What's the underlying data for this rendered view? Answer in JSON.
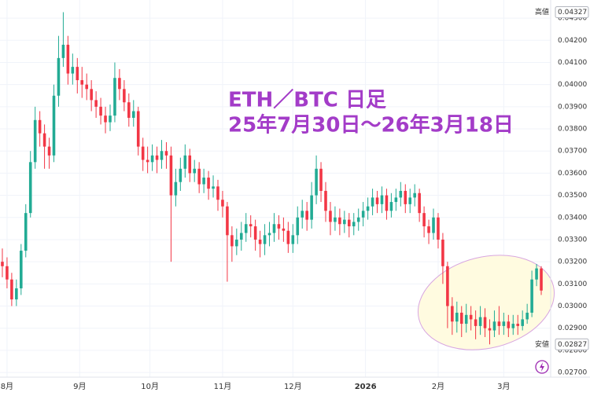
{
  "chart_data": {
    "type": "candlestick",
    "title": "ETH／BTC 日足",
    "subtitle": "25年7月30日～26年3月18日",
    "up_color": "#22ab94",
    "down_color": "#f23645",
    "xlim": [
      -0.5,
      115.5
    ],
    "xticks": [
      {
        "value": 1,
        "label": "8月"
      },
      {
        "value": 16.5,
        "label": "9月"
      },
      {
        "value": 31.5,
        "label": "10月"
      },
      {
        "value": 47,
        "label": "11月"
      },
      {
        "value": 62,
        "label": "12月"
      },
      {
        "value": 77.5,
        "label": "2026"
      },
      {
        "value": 93,
        "label": "2月"
      },
      {
        "value": 107,
        "label": "3月"
      }
    ],
    "ylim": [
      0.02679,
      0.04382
    ],
    "yticks": [
      {
        "value": 0.043,
        "label": "0.04300"
      },
      {
        "value": 0.042,
        "label": "0.04200"
      },
      {
        "value": 0.041,
        "label": "0.04100"
      },
      {
        "value": 0.04,
        "label": "0.04000"
      },
      {
        "value": 0.039,
        "label": "0.03900"
      },
      {
        "value": 0.038,
        "label": "0.03800"
      },
      {
        "value": 0.037,
        "label": "0.03700"
      },
      {
        "value": 0.036,
        "label": "0.03600"
      },
      {
        "value": 0.035,
        "label": "0.03500"
      },
      {
        "value": 0.034,
        "label": "0.03400"
      },
      {
        "value": 0.033,
        "label": "0.03300"
      },
      {
        "value": 0.032,
        "label": "0.03200"
      },
      {
        "value": 0.031,
        "label": "0.03100"
      },
      {
        "value": 0.03,
        "label": "0.03000"
      },
      {
        "value": 0.029,
        "label": "0.02900"
      },
      {
        "value": 0.028,
        "label": "0.02800"
      },
      {
        "value": 0.027,
        "label": "0.02700"
      }
    ],
    "grid": true,
    "annotations": [
      {
        "label": "高値",
        "value": 0.04327
      },
      {
        "label": "安値",
        "value": 0.02827
      }
    ],
    "open": [
      0.032,
      0.0318,
      0.0312,
      0.0303,
      0.0308,
      0.0325,
      0.0342,
      0.0365,
      0.0384,
      0.0378,
      0.0372,
      0.0368,
      0.0395,
      0.0412,
      0.0418,
      0.0405,
      0.0408,
      0.0402,
      0.04,
      0.0398,
      0.0393,
      0.039,
      0.0386,
      0.0383,
      0.0386,
      0.0403,
      0.0398,
      0.0392,
      0.0385,
      0.0388,
      0.0372,
      0.0366,
      0.0365,
      0.0368,
      0.0366,
      0.037,
      0.0368,
      0.035,
      0.0356,
      0.0362,
      0.0368,
      0.036,
      0.0362,
      0.0355,
      0.0358,
      0.0353,
      0.0354,
      0.0348,
      0.0345,
      0.0332,
      0.0327,
      0.033,
      0.0333,
      0.0337,
      0.0336,
      0.033,
      0.0328,
      0.0332,
      0.0333,
      0.0337,
      0.0335,
      0.0334,
      0.0328,
      0.0332,
      0.034,
      0.0343,
      0.0339,
      0.035,
      0.0362,
      0.0352,
      0.0343,
      0.0338,
      0.034,
      0.0337,
      0.0339,
      0.0336,
      0.0338,
      0.034,
      0.0343,
      0.0345,
      0.0349,
      0.0346,
      0.035,
      0.0343,
      0.0347,
      0.0349,
      0.0352,
      0.0346,
      0.0349,
      0.0351,
      0.0342,
      0.0336,
      0.0333,
      0.034,
      0.033,
      0.0318,
      0.03,
      0.0293,
      0.0297,
      0.0292,
      0.0296,
      0.0294,
      0.0291,
      0.0295,
      0.029,
      0.0289,
      0.0293,
      0.0291,
      0.0293,
      0.029,
      0.0292,
      0.0291,
      0.0294,
      0.0297,
      0.0312,
      0.0317
    ],
    "high": [
      0.0326,
      0.0322,
      0.0315,
      0.0312,
      0.0328,
      0.0346,
      0.037,
      0.039,
      0.0388,
      0.0382,
      0.0376,
      0.04,
      0.0422,
      0.04327,
      0.0422,
      0.0414,
      0.0412,
      0.0408,
      0.0405,
      0.0402,
      0.0397,
      0.0394,
      0.039,
      0.0391,
      0.041,
      0.0407,
      0.0402,
      0.0396,
      0.0393,
      0.039,
      0.0376,
      0.0372,
      0.0373,
      0.0372,
      0.0375,
      0.0374,
      0.0372,
      0.0362,
      0.0367,
      0.0373,
      0.0371,
      0.0366,
      0.0365,
      0.0362,
      0.0361,
      0.0359,
      0.0357,
      0.0352,
      0.0347,
      0.0336,
      0.0335,
      0.0338,
      0.0342,
      0.0341,
      0.0339,
      0.0334,
      0.0337,
      0.0338,
      0.0342,
      0.0341,
      0.034,
      0.0338,
      0.0337,
      0.0345,
      0.0348,
      0.0347,
      0.0356,
      0.0368,
      0.0365,
      0.0356,
      0.0347,
      0.0345,
      0.0344,
      0.0343,
      0.0342,
      0.0342,
      0.0344,
      0.0347,
      0.0349,
      0.0353,
      0.0352,
      0.0354,
      0.0353,
      0.0351,
      0.0353,
      0.0356,
      0.0355,
      0.0353,
      0.0355,
      0.0353,
      0.0345,
      0.0339,
      0.0344,
      0.0342,
      0.0333,
      0.032,
      0.0304,
      0.0302,
      0.03,
      0.0301,
      0.03,
      0.0298,
      0.03,
      0.0299,
      0.0294,
      0.0298,
      0.03,
      0.0297,
      0.0296,
      0.0296,
      0.0296,
      0.0298,
      0.0301,
      0.0316,
      0.0319,
      0.0318
    ],
    "low": [
      0.0313,
      0.0308,
      0.03,
      0.03,
      0.0305,
      0.0322,
      0.034,
      0.0362,
      0.0372,
      0.0362,
      0.0362,
      0.0365,
      0.039,
      0.0408,
      0.04,
      0.04,
      0.0396,
      0.0394,
      0.0393,
      0.0388,
      0.0385,
      0.0382,
      0.0378,
      0.0379,
      0.0383,
      0.0393,
      0.0388,
      0.0381,
      0.0381,
      0.0368,
      0.0361,
      0.036,
      0.0361,
      0.036,
      0.0362,
      0.0362,
      0.032,
      0.0345,
      0.0352,
      0.0358,
      0.0356,
      0.0356,
      0.0351,
      0.0351,
      0.0348,
      0.0349,
      0.0343,
      0.034,
      0.0311,
      0.032,
      0.0323,
      0.0325,
      0.0329,
      0.0331,
      0.0325,
      0.0322,
      0.0323,
      0.0327,
      0.0329,
      0.033,
      0.0329,
      0.0324,
      0.0324,
      0.0328,
      0.0335,
      0.0334,
      0.0335,
      0.0346,
      0.0347,
      0.0338,
      0.0332,
      0.0334,
      0.0332,
      0.0333,
      0.0331,
      0.0332,
      0.0334,
      0.0336,
      0.0339,
      0.0341,
      0.0342,
      0.0342,
      0.0339,
      0.034,
      0.0343,
      0.0345,
      0.0342,
      0.0342,
      0.0345,
      0.0338,
      0.0331,
      0.0328,
      0.033,
      0.0326,
      0.031,
      0.029,
      0.0287,
      0.0288,
      0.0286,
      0.0288,
      0.0289,
      0.0285,
      0.0287,
      0.0286,
      0.02827,
      0.0286,
      0.0287,
      0.0287,
      0.0286,
      0.0287,
      0.0287,
      0.0289,
      0.0292,
      0.0295,
      0.0309,
      0.0305
    ],
    "close": [
      0.0318,
      0.0312,
      0.0303,
      0.0308,
      0.0325,
      0.0342,
      0.0365,
      0.0384,
      0.0378,
      0.0372,
      0.0368,
      0.0395,
      0.0412,
      0.0418,
      0.0405,
      0.0408,
      0.0402,
      0.04,
      0.0398,
      0.0393,
      0.039,
      0.0386,
      0.0383,
      0.0386,
      0.0403,
      0.0398,
      0.0392,
      0.0385,
      0.0388,
      0.0372,
      0.0366,
      0.0365,
      0.0368,
      0.0366,
      0.037,
      0.0368,
      0.035,
      0.0356,
      0.0362,
      0.0368,
      0.036,
      0.0362,
      0.0355,
      0.0358,
      0.0353,
      0.0354,
      0.0348,
      0.0345,
      0.0332,
      0.0327,
      0.033,
      0.0333,
      0.0337,
      0.0336,
      0.033,
      0.0328,
      0.0332,
      0.0333,
      0.0337,
      0.0335,
      0.0334,
      0.0328,
      0.0332,
      0.034,
      0.0343,
      0.0339,
      0.035,
      0.0362,
      0.0352,
      0.0343,
      0.0338,
      0.034,
      0.0337,
      0.0339,
      0.0336,
      0.0338,
      0.034,
      0.0343,
      0.0345,
      0.0349,
      0.0346,
      0.035,
      0.0343,
      0.0347,
      0.0349,
      0.0352,
      0.0346,
      0.0349,
      0.0351,
      0.0342,
      0.0336,
      0.0333,
      0.034,
      0.033,
      0.0318,
      0.03,
      0.0293,
      0.0297,
      0.0292,
      0.0296,
      0.0294,
      0.0291,
      0.0295,
      0.029,
      0.0289,
      0.0293,
      0.0291,
      0.0293,
      0.029,
      0.0292,
      0.0291,
      0.0294,
      0.0297,
      0.0312,
      0.0317,
      0.0307
    ]
  }
}
